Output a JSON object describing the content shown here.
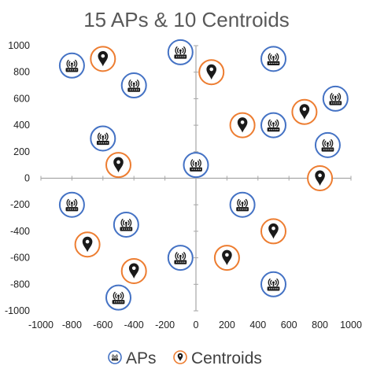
{
  "chart_data": {
    "type": "scatter",
    "title": "15 APs & 10 Centroids",
    "xlabel": "",
    "ylabel": "",
    "xlim": [
      -1000,
      1000
    ],
    "ylim": [
      -1000,
      1000
    ],
    "x_ticks": [
      -1000,
      -800,
      -600,
      -400,
      -200,
      0,
      200,
      400,
      600,
      800,
      1000
    ],
    "y_ticks": [
      1000,
      800,
      600,
      400,
      200,
      0,
      -200,
      -400,
      -600,
      -800,
      -1000
    ],
    "grid": false,
    "legend_position": "bottom",
    "series": [
      {
        "name": "APs",
        "marker": "wifi-router-icon",
        "ring_color": "#4472C4",
        "points": [
          {
            "x": -800,
            "y": 850
          },
          {
            "x": -100,
            "y": 950
          },
          {
            "x": 500,
            "y": 900
          },
          {
            "x": -400,
            "y": 700
          },
          {
            "x": 900,
            "y": 600
          },
          {
            "x": 500,
            "y": 400
          },
          {
            "x": -600,
            "y": 300
          },
          {
            "x": 850,
            "y": 250
          },
          {
            "x": 0,
            "y": 100
          },
          {
            "x": -800,
            "y": -200
          },
          {
            "x": 300,
            "y": -200
          },
          {
            "x": -450,
            "y": -350
          },
          {
            "x": -100,
            "y": -600
          },
          {
            "x": 500,
            "y": -800
          },
          {
            "x": -500,
            "y": -900
          }
        ]
      },
      {
        "name": "Centroids",
        "marker": "map-pin-icon",
        "ring_color": "#ED7D31",
        "points": [
          {
            "x": -600,
            "y": 900
          },
          {
            "x": 100,
            "y": 800
          },
          {
            "x": 700,
            "y": 500
          },
          {
            "x": 300,
            "y": 400
          },
          {
            "x": -500,
            "y": 100
          },
          {
            "x": 800,
            "y": 0
          },
          {
            "x": 500,
            "y": -400
          },
          {
            "x": -700,
            "y": -500
          },
          {
            "x": 200,
            "y": -600
          },
          {
            "x": -400,
            "y": -700
          }
        ]
      }
    ]
  },
  "colors": {
    "ap_ring": "#4472C4",
    "centroid_ring": "#ED7D31",
    "icon": "#1a1a1a",
    "axis": "#a6a6a6"
  }
}
